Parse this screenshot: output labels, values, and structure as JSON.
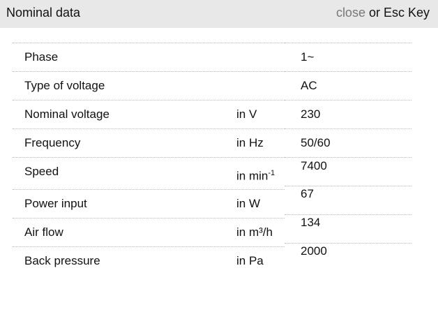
{
  "header": {
    "title": "Nominal data",
    "close_label": "close",
    "close_suffix": " or Esc Key"
  },
  "rows": [
    {
      "label": "Phase",
      "unit": "",
      "value": "1~"
    },
    {
      "label": "Type of voltage",
      "unit": "",
      "value": "AC"
    },
    {
      "label": "Nominal voltage",
      "unit": "in V",
      "value": "230"
    },
    {
      "label": "Frequency",
      "unit": "in Hz",
      "value": "50/60"
    },
    {
      "label": "Speed",
      "unit": "in min",
      "unit_sup": "-1",
      "value": "7400"
    },
    {
      "label": "Power input",
      "unit": "in W",
      "value": "67"
    },
    {
      "label": "Air flow",
      "unit": "in m³/h",
      "value": "134"
    },
    {
      "label": "Back pressure",
      "unit": "in Pa",
      "value": "2000"
    }
  ]
}
